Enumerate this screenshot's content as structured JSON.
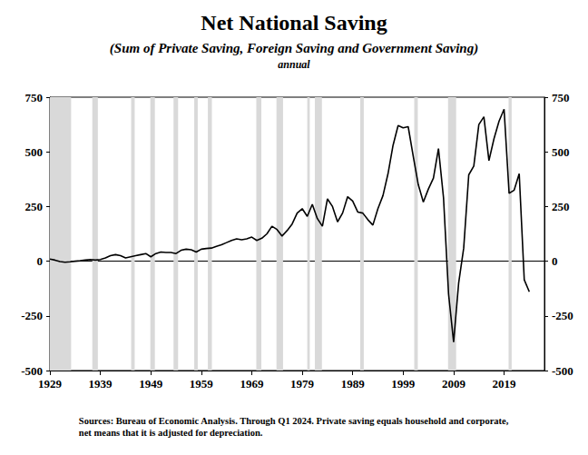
{
  "chart_data": {
    "type": "line",
    "title": "Net National Saving",
    "subtitle": "(Sum of Private Saving, Foreign Saving and Government Saving)",
    "frequency": "annual",
    "notes": [
      "Sources: Bureau of Economic Analysis. Through Q1 2024. Private saving equals household and corporate,",
      "net means that it is adjusted for depreciation."
    ],
    "x": [
      1929,
      1930,
      1931,
      1932,
      1933,
      1934,
      1935,
      1936,
      1937,
      1938,
      1939,
      1940,
      1941,
      1942,
      1943,
      1944,
      1945,
      1946,
      1947,
      1948,
      1949,
      1950,
      1951,
      1952,
      1953,
      1954,
      1955,
      1956,
      1957,
      1958,
      1959,
      1960,
      1961,
      1962,
      1963,
      1964,
      1965,
      1966,
      1967,
      1968,
      1969,
      1970,
      1971,
      1972,
      1973,
      1974,
      1975,
      1976,
      1977,
      1978,
      1979,
      1980,
      1981,
      1982,
      1983,
      1984,
      1985,
      1986,
      1987,
      1988,
      1989,
      1990,
      1991,
      1992,
      1993,
      1994,
      1995,
      1996,
      1997,
      1998,
      1999,
      2000,
      2001,
      2002,
      2003,
      2004,
      2005,
      2006,
      2007,
      2008,
      2009,
      2010,
      2011,
      2012,
      2013,
      2014,
      2015,
      2016,
      2017,
      2018,
      2019,
      2020,
      2021,
      2022,
      2023,
      2024
    ],
    "values": [
      10,
      5,
      -2,
      -5,
      -3,
      0,
      2,
      5,
      8,
      5,
      8,
      15,
      25,
      30,
      25,
      15,
      20,
      25,
      30,
      35,
      20,
      35,
      42,
      40,
      40,
      35,
      50,
      55,
      52,
      42,
      55,
      58,
      60,
      68,
      75,
      85,
      95,
      102,
      98,
      102,
      110,
      95,
      105,
      125,
      160,
      145,
      115,
      140,
      170,
      220,
      240,
      205,
      260,
      195,
      160,
      285,
      250,
      180,
      220,
      295,
      275,
      225,
      220,
      190,
      165,
      240,
      300,
      400,
      530,
      620,
      610,
      615,
      480,
      350,
      270,
      330,
      380,
      515,
      290,
      -150,
      -370,
      -100,
      60,
      395,
      435,
      625,
      660,
      460,
      560,
      640,
      695,
      310,
      325,
      400,
      -85,
      -140
    ],
    "color": "#000000",
    "recessions": [
      [
        1929,
        1933.2
      ],
      [
        1937.4,
        1938.5
      ],
      [
        1945.1,
        1945.8
      ],
      [
        1948.9,
        1949.8
      ],
      [
        1953.5,
        1954.4
      ],
      [
        1957.6,
        1958.3
      ],
      [
        1960.3,
        1961.1
      ],
      [
        1969.9,
        1970.9
      ],
      [
        1973.9,
        1975.2
      ],
      [
        1980.0,
        1980.5
      ],
      [
        1981.5,
        1982.9
      ],
      [
        1990.5,
        1991.2
      ],
      [
        2001.2,
        2001.9
      ],
      [
        2007.9,
        2009.5
      ],
      [
        2019.9,
        2020.5
      ]
    ],
    "xlim": [
      1929,
      2027
    ],
    "xticks": [
      1929,
      1939,
      1949,
      1959,
      1969,
      1979,
      1989,
      1999,
      2009,
      2019
    ],
    "ylim": [
      -500,
      750
    ],
    "yticks": [
      -500,
      -250,
      0,
      250,
      500,
      750
    ],
    "grid": false
  }
}
